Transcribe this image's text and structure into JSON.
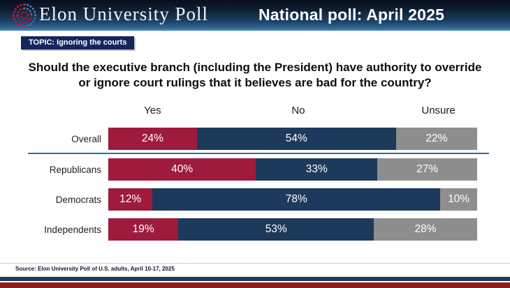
{
  "header": {
    "brand": "Elon University Poll",
    "banner_title": "National poll: April 2025",
    "logo": "elon-poll-dot-ring-logo"
  },
  "topic_badge": "TOPIC: Ignoring the courts",
  "question": "Should the executive branch (including the President) have authority to override or ignore court rulings that it believes are bad for the country?",
  "source": "Source: Elon University Poll of U.S. adults, April 10-17, 2025",
  "colors": {
    "yes": "#9e1b3e",
    "no": "#1d3a5c",
    "unsure": "#8e8e8e",
    "divider_line": "#2d6d9e",
    "banner_gradient_top": "#080f1c",
    "banner_gradient_bottom": "#2f6292",
    "topic_badge_bg": "#13275c",
    "stripe_navy": "#1f3a5c",
    "stripe_red": "#8e1b22"
  },
  "chart_data": {
    "type": "bar",
    "variant": "stacked-horizontal-100pct",
    "title": "Should the executive branch (including the President) have authority to override or ignore court rulings that it believes are bad for the country?",
    "categories": [
      "Overall",
      "Republicans",
      "Democrats",
      "Independents"
    ],
    "series": [
      {
        "name": "Yes",
        "color": "#9e1b3e",
        "values": [
          24,
          40,
          12,
          19
        ]
      },
      {
        "name": "No",
        "color": "#1d3a5c",
        "values": [
          54,
          33,
          78,
          53
        ]
      },
      {
        "name": "Unsure",
        "color": "#8e8e8e",
        "values": [
          22,
          27,
          10,
          28
        ]
      }
    ],
    "value_format": "percent",
    "xlim": [
      0,
      100
    ],
    "grid": false,
    "legend_position": "top-as-column-headers",
    "note": "Overall row separated from party rows by horizontal blue rule"
  }
}
